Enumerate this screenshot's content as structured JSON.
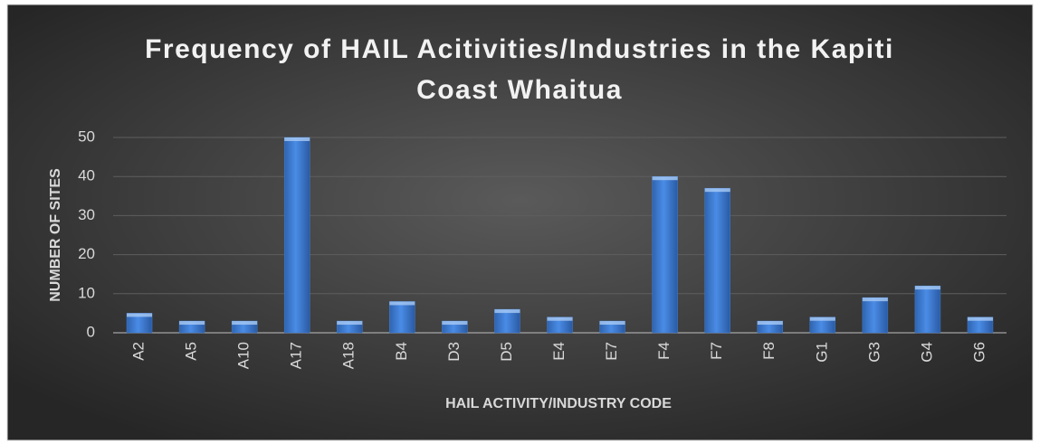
{
  "chart_data": {
    "type": "bar",
    "title": "Frequency of HAIL Acitivities/Industries in the Kapiti Coast Whaitua",
    "x_label": "HAIL ACTIVITY/INDUSTRY CODE",
    "y_label": "NUMBER OF SITES",
    "categories": [
      "A2",
      "A5",
      "A10",
      "A17",
      "A18",
      "B4",
      "D3",
      "D5",
      "E4",
      "E7",
      "F4",
      "F7",
      "F8",
      "G1",
      "G3",
      "G4",
      "G6"
    ],
    "values": [
      5,
      3,
      3,
      50,
      3,
      8,
      3,
      6,
      4,
      3,
      40,
      37,
      3,
      4,
      9,
      12,
      4
    ],
    "color": "#3f7fd6",
    "ylim": [
      0,
      50
    ],
    "yticks": [
      0,
      10,
      20,
      30,
      40,
      50
    ],
    "grid": true
  }
}
